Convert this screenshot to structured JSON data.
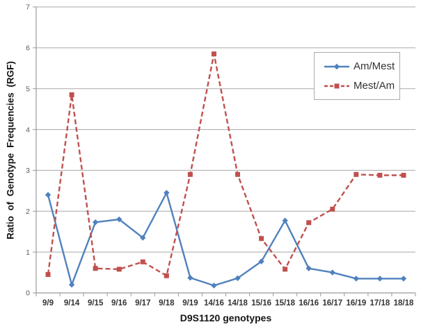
{
  "chart_data": {
    "type": "line",
    "title": "",
    "xlabel": "D9S1120 genotypes",
    "ylabel": "Ratio of Genotype Frequencies (RGF)",
    "ylim": [
      0,
      7
    ],
    "yticks": [
      0,
      1,
      2,
      3,
      4,
      5,
      6,
      7
    ],
    "grid": true,
    "legend_position": "upper right",
    "categories": [
      "9/9",
      "9/14",
      "9/15",
      "9/16",
      "9/17",
      "9/18",
      "9/19",
      "14/16",
      "14/18",
      "15/16",
      "15/18",
      "16/16",
      "16/17",
      "16/19",
      "17/18",
      "18/18"
    ],
    "series": [
      {
        "name": "Am/Mest",
        "color": "#4F81BD",
        "style": "solid",
        "marker": "diamond",
        "values": [
          2.4,
          0.2,
          1.73,
          1.8,
          1.35,
          2.45,
          0.37,
          0.18,
          0.36,
          0.77,
          1.77,
          0.6,
          0.5,
          0.35,
          0.35,
          0.35
        ]
      },
      {
        "name": "Mest/Am",
        "color": "#C0504D",
        "style": "dashed",
        "marker": "square",
        "values": [
          0.45,
          4.85,
          0.6,
          0.58,
          0.76,
          0.42,
          2.9,
          5.85,
          2.9,
          1.33,
          0.58,
          1.72,
          2.05,
          2.9,
          2.88,
          2.88
        ]
      }
    ]
  },
  "colors": {
    "background": "#FFFFFF",
    "gridline": "#A8A8A8",
    "axis": "#9A9A9A",
    "tick_label": "#595959",
    "axis_title": "#151515",
    "legend_border": "#ABABAB"
  }
}
